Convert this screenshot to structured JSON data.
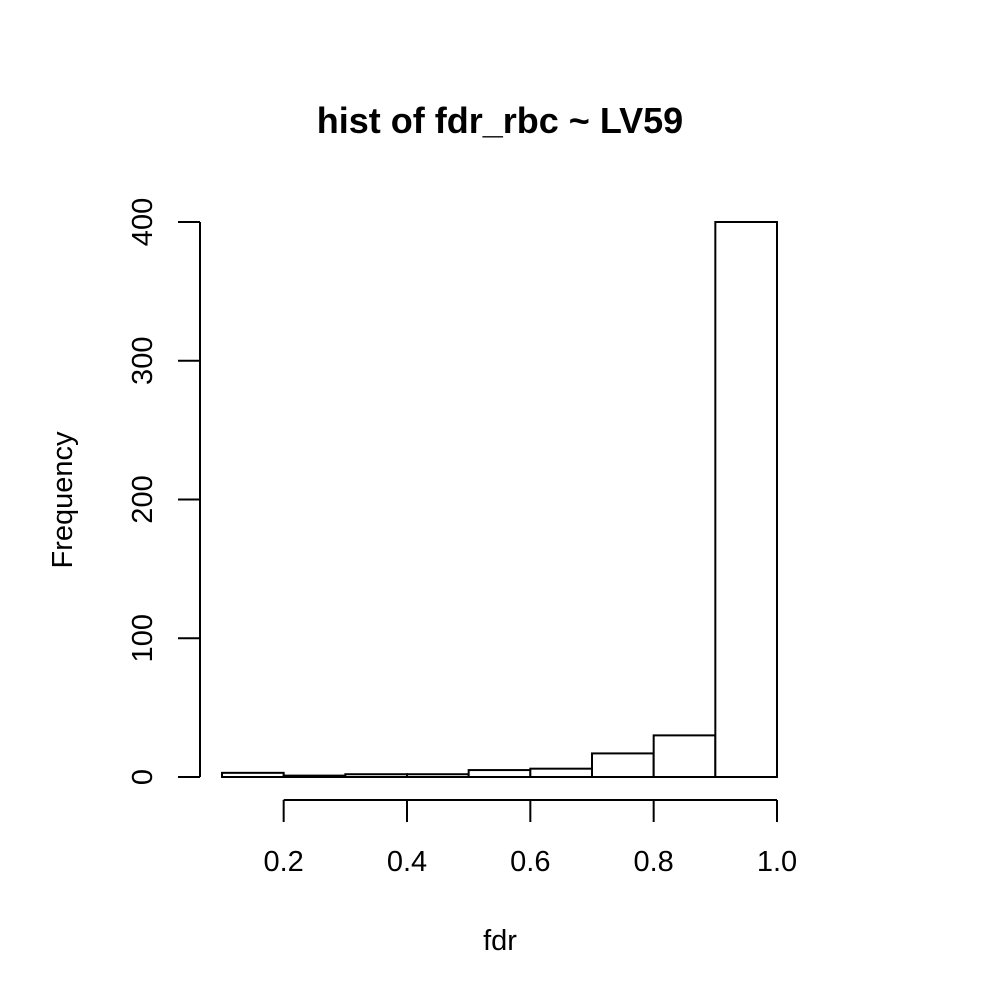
{
  "chart_data": {
    "type": "bar",
    "title": "hist of fdr_rbc ~ LV59",
    "xlabel": "fdr",
    "ylabel": "Frequency",
    "bin_edges": [
      0.1,
      0.2,
      0.3,
      0.4,
      0.5,
      0.6,
      0.7,
      0.8,
      0.9,
      1.0
    ],
    "values": [
      3,
      1,
      2,
      2,
      5,
      6,
      17,
      30,
      400
    ],
    "xlim": [
      0.1,
      1.0
    ],
    "ylim": [
      0,
      400
    ],
    "x_ticks": [
      0.2,
      0.4,
      0.6,
      0.8,
      1.0
    ],
    "x_tick_labels": [
      "0.2",
      "0.4",
      "0.6",
      "0.8",
      "1.0"
    ],
    "y_ticks": [
      0,
      100,
      200,
      300,
      400
    ],
    "y_tick_labels": [
      "0",
      "100",
      "200",
      "300",
      "400"
    ],
    "grid": false,
    "bar_fill": "#ffffff",
    "bar_stroke": "#000000"
  }
}
